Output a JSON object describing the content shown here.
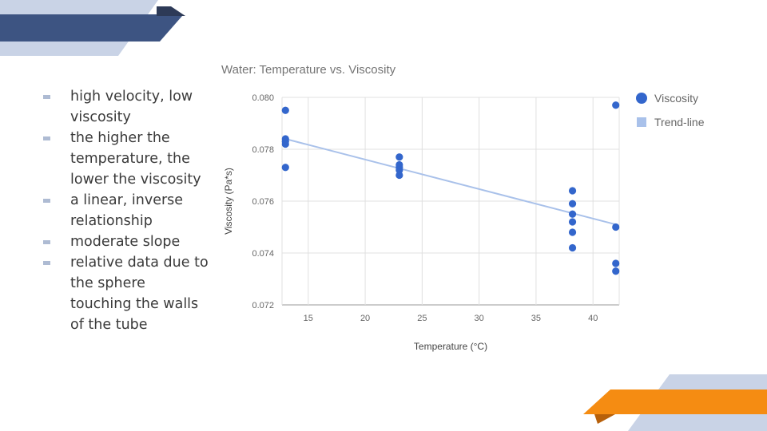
{
  "bullets": [
    "high velocity, low viscosity",
    "the higher the temperature, the lower the viscosity",
    "a linear, inverse relationship",
    "moderate slope",
    "relative data due to the sphere touching the walls of the tube"
  ],
  "colors": {
    "navy": "#3d5482",
    "navy_dark": "#2d3a57",
    "light_blue": "#c9d3e6",
    "orange": "#f58c12",
    "orange_dark": "#b7600a",
    "point": "#3366cc",
    "trend": "#a9c1ea"
  },
  "chart_data": {
    "type": "scatter",
    "title": "Water: Temperature vs. Viscosity",
    "xlabel": "Temperature (°C)",
    "ylabel": "Viscosity (Pa*s)",
    "xlim": [
      12.7,
      42.3
    ],
    "ylim": [
      0.072,
      0.08
    ],
    "xticks": [
      15,
      20,
      25,
      30,
      35,
      40
    ],
    "yticks": [
      0.072,
      0.074,
      0.076,
      0.078,
      0.08
    ],
    "xtick_labels": [
      "15",
      "20",
      "25",
      "30",
      "35",
      "40"
    ],
    "ytick_labels": [
      "0.072",
      "0.074",
      "0.076",
      "0.078",
      "0.080"
    ],
    "grid": true,
    "legend_position": "right",
    "series": [
      {
        "name": "Viscosity",
        "points": [
          [
            13,
            0.0795
          ],
          [
            13,
            0.0784
          ],
          [
            13,
            0.0783
          ],
          [
            13,
            0.0782
          ],
          [
            13,
            0.0773
          ],
          [
            23,
            0.0777
          ],
          [
            23,
            0.0774
          ],
          [
            23,
            0.0773
          ],
          [
            23,
            0.0772
          ],
          [
            23,
            0.077
          ],
          [
            38.2,
            0.0764
          ],
          [
            38.2,
            0.0759
          ],
          [
            38.2,
            0.0755
          ],
          [
            38.2,
            0.0752
          ],
          [
            38.2,
            0.0748
          ],
          [
            38.2,
            0.0742
          ],
          [
            42,
            0.0797
          ],
          [
            42,
            0.075
          ],
          [
            42,
            0.0736
          ],
          [
            42,
            0.0733
          ]
        ]
      },
      {
        "name": "Trend-line",
        "type": "line",
        "points": [
          [
            13,
            0.0784
          ],
          [
            42,
            0.0751
          ]
        ]
      }
    ]
  }
}
